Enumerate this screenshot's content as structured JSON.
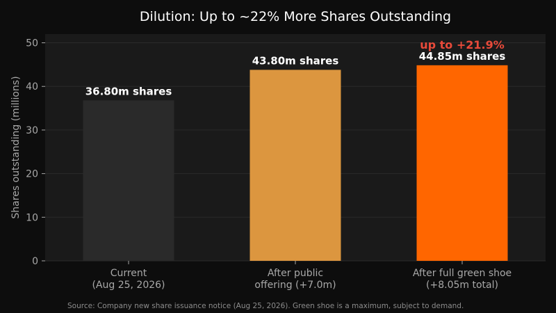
{
  "chart_data": {
    "type": "bar",
    "title": "Dilution: Up to ~22% More Shares Outstanding",
    "ylabel": "Shares outstanding (millions)",
    "xlabel": "",
    "ylim": [
      0,
      52
    ],
    "yticks": [
      0,
      10,
      20,
      30,
      40,
      50
    ],
    "grid": true,
    "categories": [
      [
        "Current",
        "(Aug 25, 2026)"
      ],
      [
        "After public",
        "offering (+7.0m)"
      ],
      [
        "After full green shoe",
        "(+8.05m total)"
      ]
    ],
    "values": [
      36.8,
      43.8,
      44.85
    ],
    "bar_colors": [
      "#2a2a2a",
      "#dc963f",
      "#ff6600"
    ],
    "data_labels": [
      "36.80m shares",
      "43.80m shares",
      "44.85m shares"
    ],
    "annotation": {
      "bar_index": 2,
      "text": "up to +21.9%",
      "color": "#e84a3a"
    },
    "source": "Source: Company new share issuance notice (Aug 25, 2026). Green shoe is a maximum, subject to demand.",
    "colors": {
      "background": "#0d0d0d",
      "plot_background": "#1a1a1a",
      "grid": "#2b2b2b",
      "axis_text": "#a8a8a8",
      "title": "#ffffff"
    }
  }
}
